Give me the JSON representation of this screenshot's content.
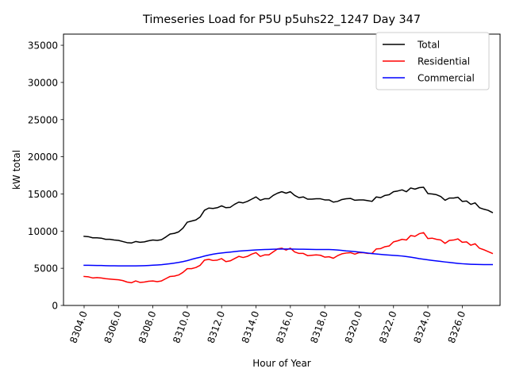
{
  "chart_data": {
    "type": "line",
    "title": "Timeseries Load for P5U p5uhs22_1247  Day 347",
    "xlabel": "Hour of Year",
    "ylabel": "kW total",
    "xlim": [
      8302.8,
      8328.2
    ],
    "ylim": [
      0,
      36500
    ],
    "x_ticks": [
      8304,
      8306,
      8308,
      8310,
      8312,
      8314,
      8316,
      8318,
      8320,
      8322,
      8324,
      8326
    ],
    "x_tick_labels": [
      "8304.0",
      "8306.0",
      "8308.0",
      "8310.0",
      "8312.0",
      "8314.0",
      "8316.0",
      "8318.0",
      "8320.0",
      "8322.0",
      "8324.0",
      "8326.0"
    ],
    "y_ticks": [
      0,
      5000,
      10000,
      15000,
      20000,
      25000,
      30000,
      35000
    ],
    "y_tick_labels": [
      "0",
      "5000",
      "10000",
      "15000",
      "20000",
      "25000",
      "30000",
      "35000"
    ],
    "grid": false,
    "legend_position": "top-right",
    "x_start": 8304.0,
    "x_step": 0.25,
    "series": [
      {
        "name": "Total",
        "color": "#000000",
        "values": [
          9300,
          9250,
          9100,
          9100,
          9050,
          8900,
          8900,
          8800,
          8750,
          8600,
          8450,
          8400,
          8600,
          8500,
          8550,
          8700,
          8800,
          8750,
          8850,
          9200,
          9600,
          9700,
          9900,
          10400,
          11200,
          11350,
          11500,
          11900,
          12800,
          13100,
          13050,
          13150,
          13400,
          13150,
          13200,
          13600,
          13900,
          13800,
          14000,
          14300,
          14600,
          14150,
          14350,
          14350,
          14800,
          15100,
          15300,
          15100,
          15300,
          14800,
          14500,
          14600,
          14300,
          14300,
          14350,
          14350,
          14200,
          14200,
          13900,
          14000,
          14250,
          14350,
          14400,
          14150,
          14200,
          14200,
          14100,
          14000,
          14600,
          14500,
          14800,
          14900,
          15300,
          15400,
          15550,
          15300,
          15800,
          15650,
          15850,
          15900,
          15050,
          15000,
          14900,
          14650,
          14150,
          14450,
          14450,
          14550,
          14000,
          14050,
          13600,
          13800,
          13150,
          12950,
          12800,
          12500
        ]
      },
      {
        "name": "Residential",
        "color": "#ff0000",
        "values": [
          3900,
          3850,
          3700,
          3750,
          3700,
          3600,
          3550,
          3500,
          3450,
          3350,
          3150,
          3050,
          3300,
          3100,
          3150,
          3250,
          3300,
          3200,
          3300,
          3600,
          3900,
          3950,
          4100,
          4450,
          4950,
          4950,
          5100,
          5400,
          6100,
          6200,
          6050,
          6100,
          6300,
          5900,
          6000,
          6300,
          6600,
          6450,
          6600,
          6900,
          7100,
          6600,
          6800,
          6800,
          7200,
          7600,
          7700,
          7450,
          7700,
          7200,
          7000,
          7000,
          6700,
          6750,
          6800,
          6750,
          6500,
          6550,
          6350,
          6700,
          6950,
          7050,
          7100,
          6900,
          7100,
          7100,
          7000,
          7000,
          7600,
          7650,
          7900,
          8000,
          8550,
          8700,
          8900,
          8800,
          9400,
          9300,
          9650,
          9800,
          9000,
          9050,
          8900,
          8800,
          8350,
          8750,
          8800,
          8950,
          8500,
          8550,
          8100,
          8300,
          7700,
          7500,
          7250,
          7000
        ]
      },
      {
        "name": "Commercial",
        "color": "#0000ff",
        "values": [
          5400,
          5400,
          5390,
          5380,
          5370,
          5350,
          5340,
          5330,
          5320,
          5320,
          5320,
          5320,
          5320,
          5330,
          5350,
          5380,
          5410,
          5440,
          5480,
          5550,
          5620,
          5700,
          5790,
          5900,
          6030,
          6200,
          6350,
          6480,
          6640,
          6780,
          6900,
          6990,
          7060,
          7120,
          7180,
          7250,
          7310,
          7350,
          7390,
          7430,
          7470,
          7500,
          7520,
          7540,
          7560,
          7580,
          7590,
          7590,
          7590,
          7580,
          7570,
          7560,
          7550,
          7540,
          7530,
          7530,
          7530,
          7520,
          7500,
          7460,
          7400,
          7340,
          7300,
          7250,
          7180,
          7120,
          7050,
          6980,
          6920,
          6870,
          6820,
          6780,
          6740,
          6700,
          6650,
          6580,
          6500,
          6400,
          6300,
          6220,
          6140,
          6060,
          5990,
          5920,
          5850,
          5790,
          5720,
          5660,
          5610,
          5570,
          5540,
          5520,
          5510,
          5500,
          5500,
          5500
        ]
      }
    ]
  }
}
